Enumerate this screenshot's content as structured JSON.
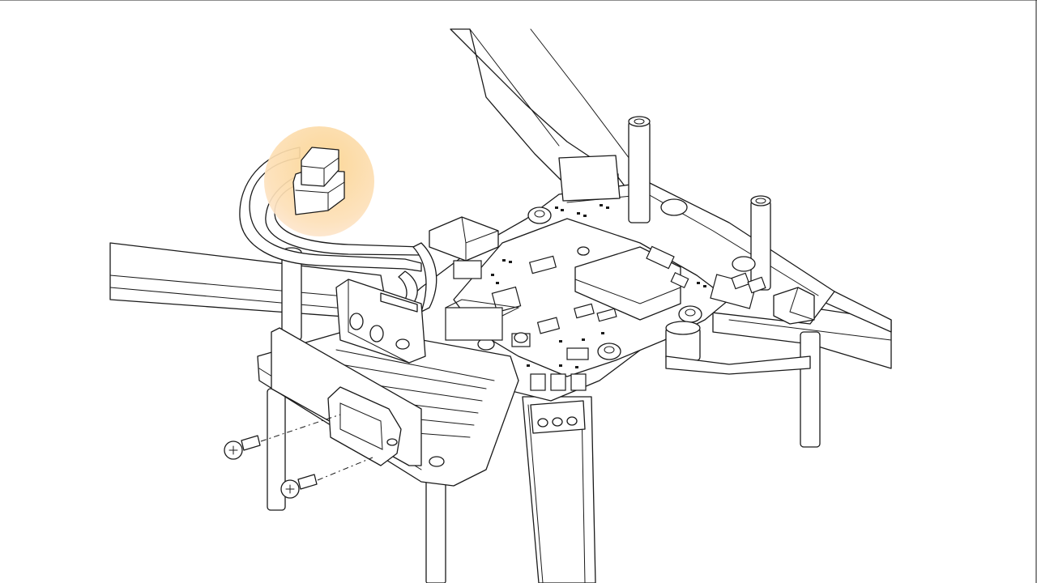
{
  "figure": {
    "subject": "drone-frame-with-power-distribution-board",
    "icons": [
      "drone-arm-icon",
      "power-distribution-board-icon",
      "xt-power-connector-icon",
      "standoff-icon",
      "screw-icon",
      "battery-plug-icon"
    ],
    "highlight": {
      "target": "battery-plug-connector",
      "color_inner": "#fbd38d",
      "color_outer": "#fde6c4"
    },
    "line_color": "#1a1a1a",
    "background_color": "#ffffff"
  }
}
